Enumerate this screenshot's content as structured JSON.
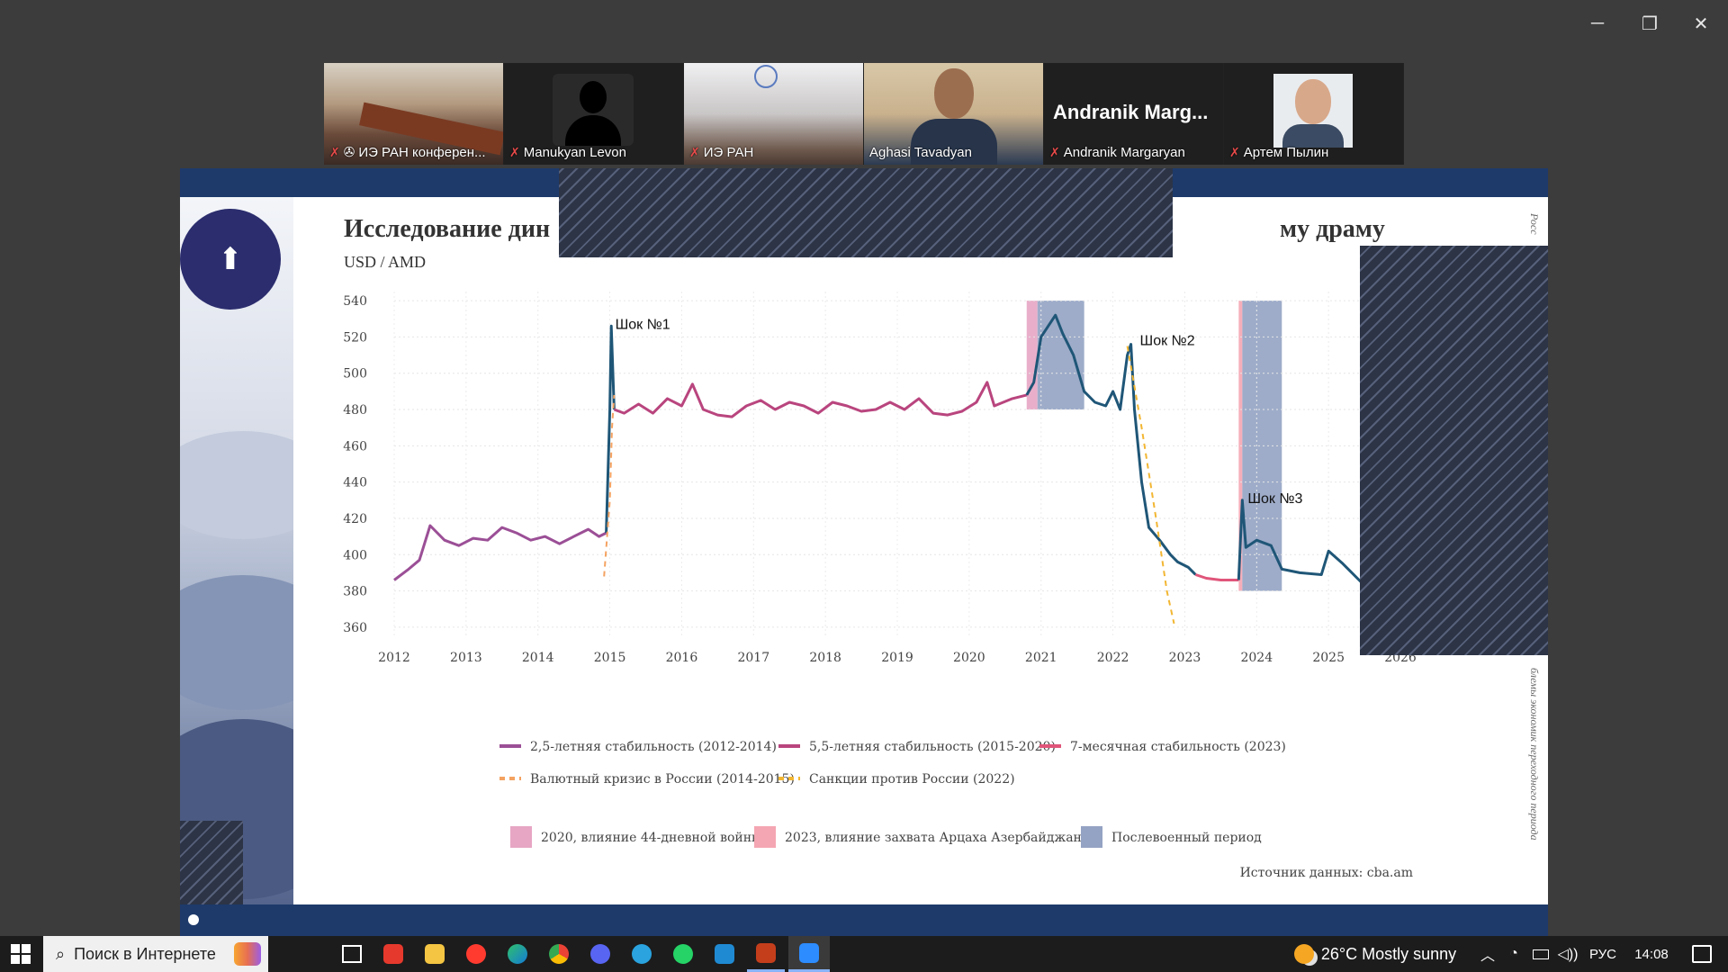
{
  "window": {
    "controls": [
      "─",
      "❐",
      "✕"
    ]
  },
  "participants": [
    {
      "name": "ИЭ РАН конферен...",
      "muted": true,
      "pinned": true,
      "type": "room"
    },
    {
      "name": "Manukyan Levon",
      "muted": true,
      "type": "avatar"
    },
    {
      "name": "ИЭ РАН",
      "muted": true,
      "type": "room2"
    },
    {
      "name": "Aghasi Tavadyan",
      "muted": false,
      "active": true,
      "type": "person"
    },
    {
      "name": "Andranik Margaryan",
      "display_name": "Andranik Marg...",
      "muted": true,
      "type": "name"
    },
    {
      "name": "Артем Пылин",
      "muted": true,
      "type": "person2"
    }
  ],
  "slide": {
    "title_left": "Исследование дин",
    "title_right": "му драму",
    "subtitle": "USD / AMD",
    "vertical_text": "Росс",
    "vertical_text2": "блемы экономик переходного периода"
  },
  "chart_data": {
    "type": "line",
    "x_ticks": [
      "2012",
      "2013",
      "2014",
      "2015",
      "2016",
      "2017",
      "2018",
      "2019",
      "2020",
      "2021",
      "2022",
      "2023",
      "2024",
      "2025",
      "2026"
    ],
    "y_ticks": [
      "540",
      "520",
      "500",
      "480",
      "460",
      "440",
      "420",
      "400",
      "380",
      "360"
    ],
    "xlim": [
      2012,
      2026.2
    ],
    "ylim": [
      355,
      545
    ],
    "grid": true,
    "annotations": [
      {
        "text": "Шок №1",
        "x": 2015.0,
        "y": 527
      },
      {
        "text": "Шок №2",
        "x": 2022.3,
        "y": 518
      },
      {
        "text": "Шок №3",
        "x": 2023.8,
        "y": 431
      }
    ],
    "shaded": [
      {
        "name": "2020, влияние 44-дневной войны",
        "x0": 2020.8,
        "x1": 2020.95,
        "color": "#e7a6c4"
      },
      {
        "name": "Послевоенный период",
        "x0": 2020.95,
        "x1": 2021.6,
        "color": "#94a3c3"
      },
      {
        "name": "2023, влияние захвата Арцаха Азербайджаном",
        "x0": 2023.75,
        "x1": 2023.8,
        "color": "#f4a6b2"
      },
      {
        "name": "Послевоенный период",
        "x0": 2023.8,
        "x1": 2024.35,
        "color": "#94a3c3"
      }
    ],
    "series": [
      {
        "name": "2,5-летняя стабильность (2012-2014)",
        "color": "#9b4f96",
        "points": [
          [
            2012.0,
            386
          ],
          [
            2012.2,
            392
          ],
          [
            2012.35,
            397
          ],
          [
            2012.5,
            416
          ],
          [
            2012.7,
            408
          ],
          [
            2012.9,
            405
          ],
          [
            2013.1,
            409
          ],
          [
            2013.3,
            408
          ],
          [
            2013.5,
            415
          ],
          [
            2013.7,
            412
          ],
          [
            2013.9,
            408
          ],
          [
            2014.1,
            410
          ],
          [
            2014.3,
            406
          ],
          [
            2014.5,
            410
          ],
          [
            2014.7,
            414
          ],
          [
            2014.85,
            410
          ],
          [
            2014.95,
            412
          ]
        ]
      },
      {
        "name": "",
        "color": "#1f5677",
        "points": [
          [
            2014.95,
            412
          ],
          [
            2015.0,
            480
          ],
          [
            2015.02,
            526
          ],
          [
            2015.06,
            480
          ],
          [
            2012.0,
            386
          ]
        ]
      },
      {
        "name": "5,5-летняя стабильность (2015-2020)",
        "color": "#b9457e",
        "points": [
          [
            2015.06,
            480
          ],
          [
            2015.2,
            478
          ],
          [
            2015.4,
            483
          ],
          [
            2015.6,
            478
          ],
          [
            2015.8,
            486
          ],
          [
            2016.0,
            482
          ],
          [
            2016.15,
            494
          ],
          [
            2016.3,
            480
          ],
          [
            2016.5,
            477
          ],
          [
            2016.7,
            476
          ],
          [
            2016.9,
            482
          ],
          [
            2017.1,
            485
          ],
          [
            2017.3,
            480
          ],
          [
            2017.5,
            484
          ],
          [
            2017.7,
            482
          ],
          [
            2017.9,
            478
          ],
          [
            2018.1,
            484
          ],
          [
            2018.3,
            482
          ],
          [
            2018.5,
            479
          ],
          [
            2018.7,
            480
          ],
          [
            2018.9,
            484
          ],
          [
            2019.1,
            480
          ],
          [
            2019.3,
            486
          ],
          [
            2019.5,
            478
          ],
          [
            2019.7,
            477
          ],
          [
            2019.9,
            479
          ],
          [
            2020.1,
            484
          ],
          [
            2020.25,
            495
          ],
          [
            2020.35,
            482
          ],
          [
            2020.6,
            486
          ],
          [
            2020.8,
            488
          ]
        ]
      },
      {
        "name": "",
        "color": "#1f5677",
        "points": [
          [
            2020.8,
            488
          ],
          [
            2020.9,
            495
          ],
          [
            2021.0,
            520
          ],
          [
            2021.2,
            532
          ],
          [
            2021.3,
            522
          ],
          [
            2021.45,
            510
          ],
          [
            2021.6,
            490
          ],
          [
            2021.75,
            484
          ],
          [
            2021.9,
            482
          ],
          [
            2022.0,
            490
          ],
          [
            2022.1,
            480
          ],
          [
            2022.2,
            510
          ],
          [
            2022.25,
            516
          ],
          [
            2022.3,
            480
          ],
          [
            2022.4,
            440
          ],
          [
            2022.5,
            415
          ],
          [
            2022.65,
            408
          ],
          [
            2022.8,
            400
          ],
          [
            2022.9,
            396
          ],
          [
            2023.05,
            393
          ],
          [
            2023.15,
            389
          ]
        ]
      },
      {
        "name": "7-месячная стабильность (2023)",
        "color": "#e0557a",
        "points": [
          [
            2023.15,
            389
          ],
          [
            2023.3,
            387
          ],
          [
            2023.5,
            386
          ],
          [
            2023.75,
            386
          ]
        ]
      },
      {
        "name": "",
        "color": "#1f5677",
        "points": [
          [
            2023.75,
            386
          ],
          [
            2023.8,
            430
          ],
          [
            2023.85,
            404
          ],
          [
            2024.0,
            408
          ],
          [
            2024.2,
            405
          ],
          [
            2024.35,
            392
          ],
          [
            2024.6,
            390
          ],
          [
            2024.9,
            389
          ],
          [
            2025.0,
            402
          ],
          [
            2025.2,
            395
          ],
          [
            2025.45,
            385
          ]
        ]
      },
      {
        "name": "Валютный кризис в России (2014-2015)",
        "color": "#f4a261",
        "dashed": true,
        "points": [
          [
            2014.92,
            388
          ],
          [
            2015.0,
            430
          ],
          [
            2015.03,
            470
          ],
          [
            2015.06,
            488
          ]
        ]
      },
      {
        "name": "Санкции против России (2022)",
        "color": "#f2b632",
        "dashed": true,
        "points": [
          [
            2022.2,
            515
          ],
          [
            2022.4,
            470
          ],
          [
            2022.6,
            420
          ],
          [
            2022.75,
            380
          ],
          [
            2022.85,
            362
          ]
        ]
      }
    ],
    "source": "Источник данных: cba.am"
  },
  "taskbar": {
    "search_placeholder": "Поиск в Интернете",
    "weather": "26°C  Mostly sunny",
    "lang": "РУС",
    "time": "14:08"
  }
}
